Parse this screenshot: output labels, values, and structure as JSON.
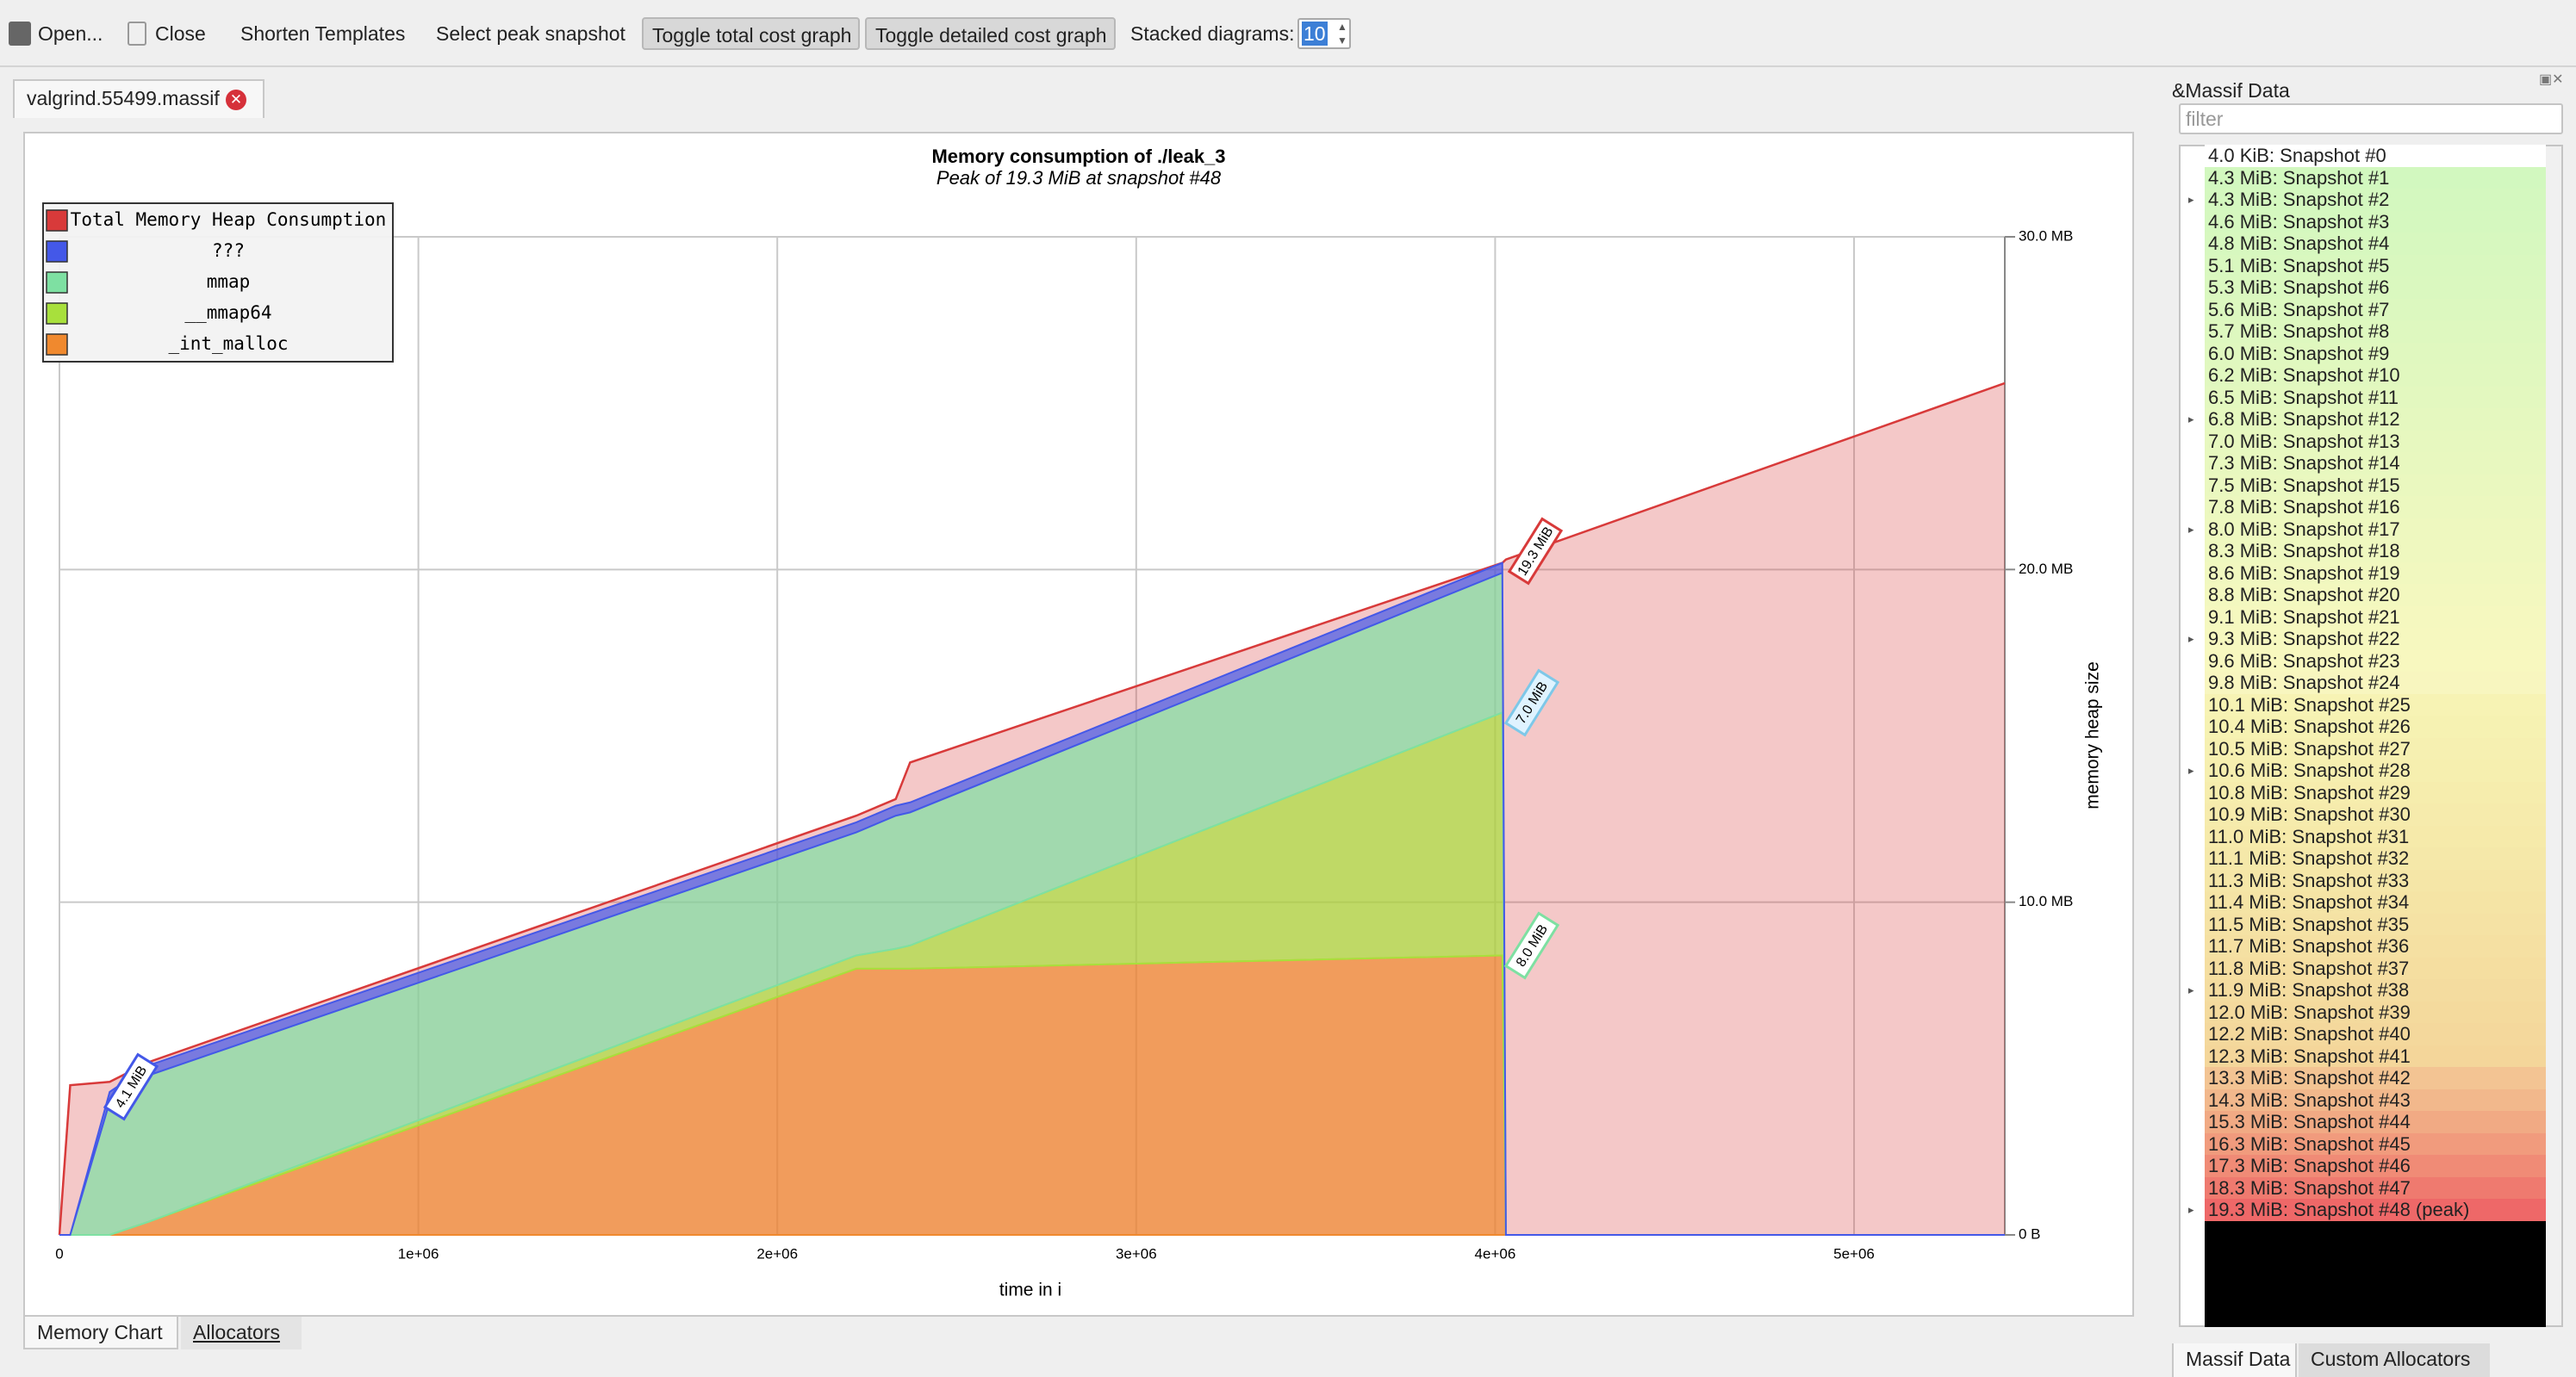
{
  "toolbar": {
    "buttons": [
      "Open...",
      "Close",
      "Shorten Templates",
      "Select peak snapshot",
      "Toggle total cost graph",
      "Toggle detailed cost graph"
    ],
    "stacked_label": "Stacked diagrams:",
    "stacked_value": 10
  },
  "tab": "valgrind.55499.massif",
  "bottom_tabs": [
    "Memory Chart",
    "Allocators"
  ],
  "dock": {
    "title": "&Massif Data",
    "filter_placeholder": "filter",
    "tabs": [
      "Massif Data",
      "Custom Allocators"
    ],
    "snapshots": [
      {
        "label": "4.0 KiB: Snapshot #0",
        "expandable": false
      },
      {
        "label": "4.3 MiB: Snapshot #1",
        "expandable": false
      },
      {
        "label": "4.3 MiB: Snapshot #2",
        "expandable": true
      },
      {
        "label": "4.6 MiB: Snapshot #3",
        "expandable": false
      },
      {
        "label": "4.8 MiB: Snapshot #4",
        "expandable": false
      },
      {
        "label": "5.1 MiB: Snapshot #5",
        "expandable": false
      },
      {
        "label": "5.3 MiB: Snapshot #6",
        "expandable": false
      },
      {
        "label": "5.6 MiB: Snapshot #7",
        "expandable": false
      },
      {
        "label": "5.7 MiB: Snapshot #8",
        "expandable": false
      },
      {
        "label": "6.0 MiB: Snapshot #9",
        "expandable": false
      },
      {
        "label": "6.2 MiB: Snapshot #10",
        "expandable": false
      },
      {
        "label": "6.5 MiB: Snapshot #11",
        "expandable": false
      },
      {
        "label": "6.8 MiB: Snapshot #12",
        "expandable": true
      },
      {
        "label": "7.0 MiB: Snapshot #13",
        "expandable": false
      },
      {
        "label": "7.3 MiB: Snapshot #14",
        "expandable": false
      },
      {
        "label": "7.5 MiB: Snapshot #15",
        "expandable": false
      },
      {
        "label": "7.8 MiB: Snapshot #16",
        "expandable": false
      },
      {
        "label": "8.0 MiB: Snapshot #17",
        "expandable": true
      },
      {
        "label": "8.3 MiB: Snapshot #18",
        "expandable": false
      },
      {
        "label": "8.6 MiB: Snapshot #19",
        "expandable": false
      },
      {
        "label": "8.8 MiB: Snapshot #20",
        "expandable": false
      },
      {
        "label": "9.1 MiB: Snapshot #21",
        "expandable": false
      },
      {
        "label": "9.3 MiB: Snapshot #22",
        "expandable": true
      },
      {
        "label": "9.6 MiB: Snapshot #23",
        "expandable": false
      },
      {
        "label": "9.8 MiB: Snapshot #24",
        "expandable": false
      },
      {
        "label": "10.1 MiB: Snapshot #25",
        "expandable": false
      },
      {
        "label": "10.4 MiB: Snapshot #26",
        "expandable": false
      },
      {
        "label": "10.5 MiB: Snapshot #27",
        "expandable": false
      },
      {
        "label": "10.6 MiB: Snapshot #28",
        "expandable": true
      },
      {
        "label": "10.8 MiB: Snapshot #29",
        "expandable": false
      },
      {
        "label": "10.9 MiB: Snapshot #30",
        "expandable": false
      },
      {
        "label": "11.0 MiB: Snapshot #31",
        "expandable": false
      },
      {
        "label": "11.1 MiB: Snapshot #32",
        "expandable": false
      },
      {
        "label": "11.3 MiB: Snapshot #33",
        "expandable": false
      },
      {
        "label": "11.4 MiB: Snapshot #34",
        "expandable": false
      },
      {
        "label": "11.5 MiB: Snapshot #35",
        "expandable": false
      },
      {
        "label": "11.7 MiB: Snapshot #36",
        "expandable": false
      },
      {
        "label": "11.8 MiB: Snapshot #37",
        "expandable": false
      },
      {
        "label": "11.9 MiB: Snapshot #38",
        "expandable": true
      },
      {
        "label": "12.0 MiB: Snapshot #39",
        "expandable": false
      },
      {
        "label": "12.2 MiB: Snapshot #40",
        "expandable": false
      },
      {
        "label": "12.3 MiB: Snapshot #41",
        "expandable": false
      },
      {
        "label": "13.3 MiB: Snapshot #42",
        "expandable": false
      },
      {
        "label": "14.3 MiB: Snapshot #43",
        "expandable": false
      },
      {
        "label": "15.3 MiB: Snapshot #44",
        "expandable": false
      },
      {
        "label": "16.3 MiB: Snapshot #45",
        "expandable": false
      },
      {
        "label": "17.3 MiB: Snapshot #46",
        "expandable": false
      },
      {
        "label": "18.3 MiB: Snapshot #47",
        "expandable": false
      },
      {
        "label": "19.3 MiB: Snapshot #48 (peak)",
        "expandable": true
      }
    ]
  },
  "chart_data": {
    "type": "stacked_area",
    "title": "Memory consumption of ./leak_3",
    "subtitle": "Peak of 19.3 MiB at snapshot #48",
    "x_label": "time in i",
    "y_label": "memory heap size",
    "x": [
      0,
      30000,
      140000,
      250000,
      2220000,
      2330000,
      2370000,
      4020000,
      4030000,
      5420000
    ],
    "total": {
      "name": "Total Memory Heap Consumption",
      "color": "#d83a3a",
      "values": [
        0,
        4.5,
        4.6,
        5.2,
        12.6,
        13.1,
        14.2,
        20.2,
        20.3,
        25.6
      ]
    },
    "series": [
      {
        "name": "???",
        "color": "#4458e8",
        "values": [
          0,
          0,
          0.3,
          0.3,
          0.3,
          0.3,
          0.3,
          0.3,
          0,
          0
        ]
      },
      {
        "name": "mmap",
        "color": "#7ee0a2",
        "values": [
          0,
          0,
          4.0,
          4.4,
          3.7,
          4.0,
          4.0,
          4.2,
          0,
          0
        ]
      },
      {
        "name": "__mmap64",
        "color": "#a8e03c",
        "values": [
          0,
          0,
          0,
          0,
          0.4,
          0.6,
          0.7,
          7.3,
          0,
          0
        ]
      },
      {
        "name": "_int_malloc",
        "color": "#f0892e",
        "values": [
          0,
          0,
          0,
          0.4,
          8.0,
          8.0,
          8.0,
          8.4,
          0,
          0
        ]
      }
    ],
    "xlim": [
      0,
      5420000
    ],
    "ylim": [
      0,
      30
    ],
    "xticks": [
      0,
      {
        "value": 1000000,
        "label": "1e+06"
      },
      {
        "value": 2000000,
        "label": "2e+06"
      },
      {
        "value": 3000000,
        "label": "3e+06"
      },
      {
        "value": 4000000,
        "label": "4e+06"
      },
      {
        "value": 5000000,
        "label": "5e+06"
      }
    ],
    "yticks": [
      {
        "value": 0,
        "label": "0 B"
      },
      {
        "value": 10,
        "label": "10.0 MB"
      },
      {
        "value": 20,
        "label": "20.0 MB"
      },
      {
        "value": 30,
        "label": "30.0 MB"
      }
    ],
    "grid": true,
    "legend": "upper left",
    "annotations": [
      "4.1 MiB",
      "19.3 MiB",
      "7.0 MiB",
      "8.0 MiB"
    ]
  }
}
